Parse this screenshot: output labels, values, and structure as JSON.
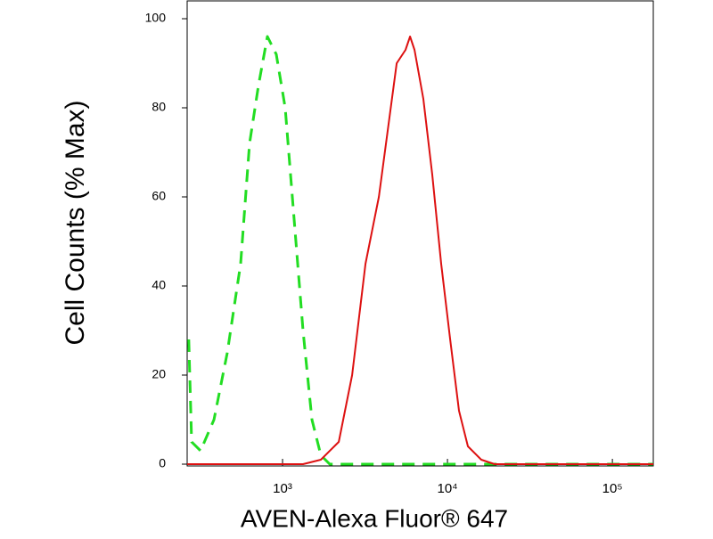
{
  "chart_data": {
    "type": "line",
    "xlabel": "AVEN-Alexa Fluor® 647",
    "ylabel": "Cell Counts (% Max)",
    "xscale": "log",
    "xlim": [
      264,
      177000
    ],
    "xticks": [
      {
        "value": 1000,
        "label": "10³"
      },
      {
        "value": 10000,
        "label": "10⁴"
      },
      {
        "value": 100000,
        "label": "10⁵"
      }
    ],
    "ylim": [
      0,
      104
    ],
    "yticks": [
      0,
      20,
      40,
      60,
      80,
      100
    ],
    "series": [
      {
        "color": "#22dd22",
        "dash": true,
        "x": [
          270,
          281,
          318,
          384,
          462,
          557,
          631,
          714,
          809,
          916,
          1038,
          1175,
          1331,
          1507,
          1707,
          1933,
          177000
        ],
        "values": [
          28,
          5,
          3,
          10,
          25,
          45,
          72,
          85,
          96,
          92,
          80,
          55,
          30,
          10,
          2,
          0,
          0
        ]
      },
      {
        "color": "#dd1111",
        "dash": false,
        "x": [
          264,
          1331,
          1707,
          2191,
          2642,
          3184,
          3837,
          4345,
          4920,
          5570,
          5930,
          6310,
          7140,
          8090,
          9160,
          10380,
          11750,
          13300,
          16030,
          19320,
          177000
        ],
        "values": [
          0,
          0,
          1,
          5,
          20,
          45,
          60,
          75,
          90,
          93,
          96,
          93,
          82,
          65,
          45,
          28,
          12,
          4,
          1,
          0,
          0
        ]
      }
    ]
  }
}
